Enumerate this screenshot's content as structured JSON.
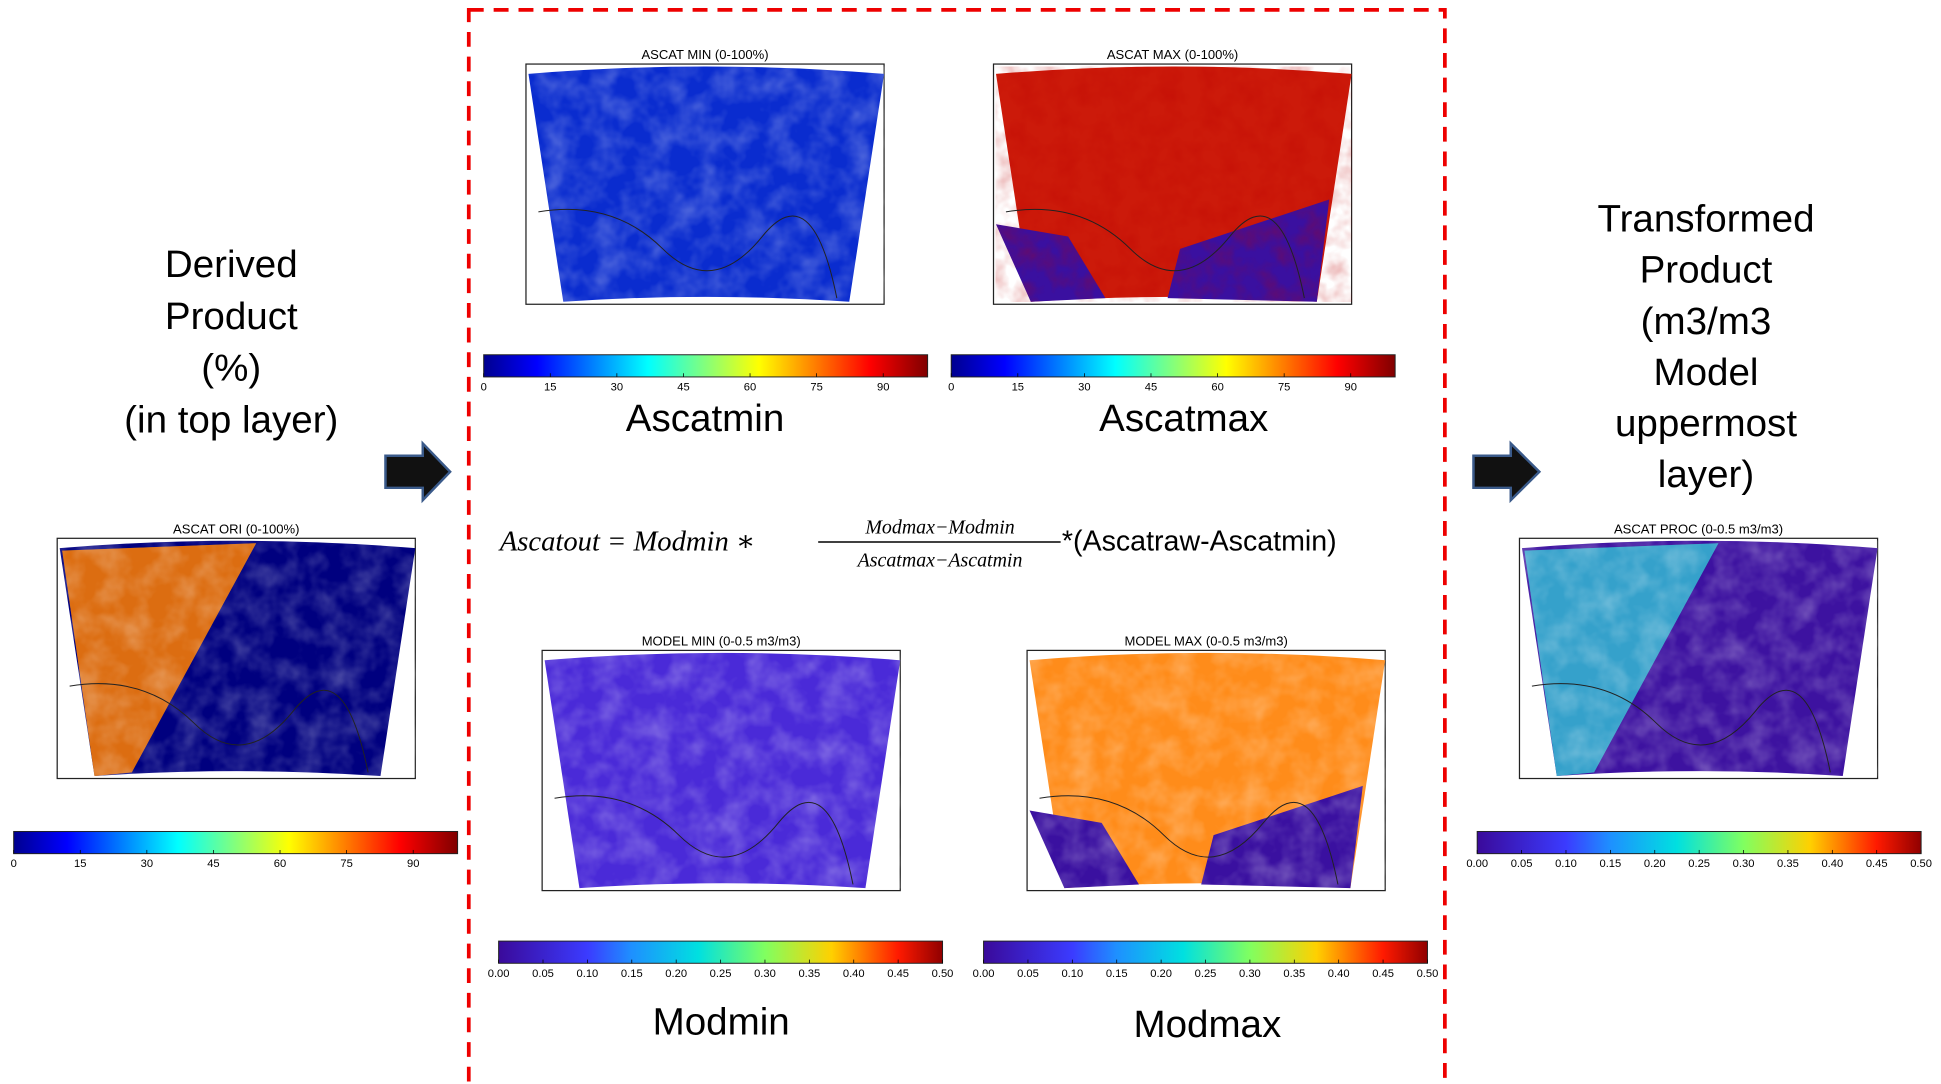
{
  "left_label": [
    "Derived",
    "Product",
    "(%)",
    "(in top layer)"
  ],
  "right_label": [
    "Transformed",
    "Product",
    "(m3/m3",
    "Model",
    "uppermost",
    "layer)"
  ],
  "panels": [
    {
      "title": "ASCAT ORI (0-100%)",
      "ticks": [
        "0",
        "15",
        "30",
        "45",
        "60",
        "75",
        "90"
      ]
    },
    {
      "title": "ASCAT MIN (0-100%)",
      "ticks": [
        "0",
        "15",
        "30",
        "45",
        "60",
        "75",
        "90"
      ],
      "label": "Ascatmin"
    },
    {
      "title": "ASCAT MAX (0-100%)",
      "ticks": [
        "0",
        "15",
        "30",
        "45",
        "60",
        "75",
        "90"
      ],
      "label": "Ascatmax"
    },
    {
      "title": "MODEL MIN (0-0.5 m3/m3)",
      "ticks": [
        "0.00",
        "0.05",
        "0.10",
        "0.15",
        "0.20",
        "0.25",
        "0.30",
        "0.35",
        "0.40",
        "0.45",
        "0.50"
      ],
      "label": "Modmin"
    },
    {
      "title": "MODEL MAX (0-0.5 m3/m3)",
      "ticks": [
        "0.00",
        "0.05",
        "0.10",
        "0.15",
        "0.20",
        "0.25",
        "0.30",
        "0.35",
        "0.40",
        "0.45",
        "0.50"
      ],
      "label": "Modmax"
    },
    {
      "title": "ASCAT PROC (0-0.5 m3/m3)",
      "ticks": [
        "0.00",
        "0.05",
        "0.10",
        "0.15",
        "0.20",
        "0.25",
        "0.30",
        "0.35",
        "0.40",
        "0.45",
        "0.50"
      ]
    }
  ],
  "formula": {
    "lhs": "Ascatout = Modmin ∗",
    "numerator": "Modmax−Modmin",
    "denominator": "Ascatmax−Ascatmin",
    "rhs": "*(Ascatraw-Ascatmin)"
  }
}
